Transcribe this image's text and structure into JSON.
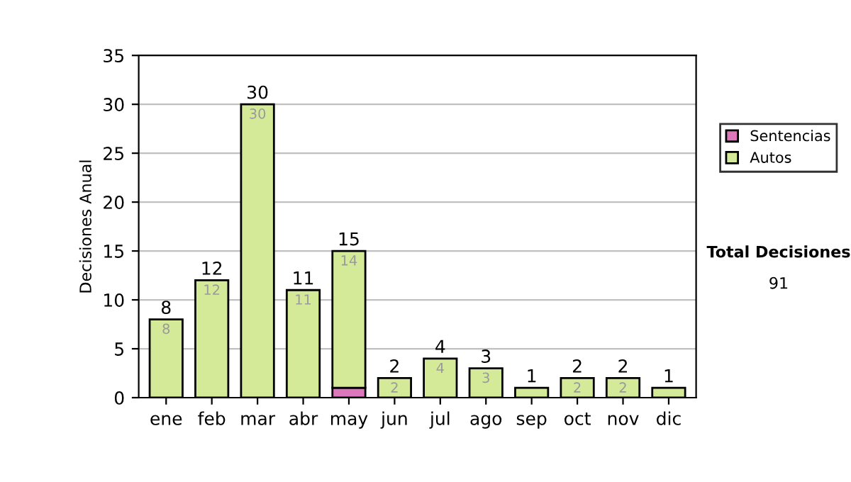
{
  "chart_data": {
    "type": "bar",
    "ylabel": "Decisiones Anual",
    "categories": [
      "ene",
      "feb",
      "mar",
      "abr",
      "may",
      "jun",
      "jul",
      "ago",
      "sep",
      "oct",
      "nov",
      "dic"
    ],
    "stacked": true,
    "series": [
      {
        "name": "Sentencias",
        "color": "#dd77bb",
        "values": [
          0,
          0,
          0,
          0,
          1,
          0,
          0,
          0,
          0,
          0,
          0,
          0
        ]
      },
      {
        "name": "Autos",
        "color": "#d4ea99",
        "values": [
          8,
          12,
          30,
          11,
          14,
          2,
          4,
          3,
          1,
          2,
          2,
          1
        ],
        "value_labels": [
          "8",
          "12",
          "30",
          "11",
          "14",
          "2",
          "4",
          "3",
          null,
          "2",
          "2",
          null
        ]
      }
    ],
    "totals": [
      "8",
      "12",
      "30",
      "11",
      "15",
      "2",
      "4",
      "3",
      "1",
      "2",
      "2",
      "1"
    ],
    "ylim": [
      0,
      35
    ],
    "yticks": [
      0,
      5,
      10,
      15,
      20,
      25,
      30,
      35
    ],
    "grid": "y",
    "legend": "right",
    "annotations": [
      "Total Decisiones",
      "91"
    ]
  }
}
